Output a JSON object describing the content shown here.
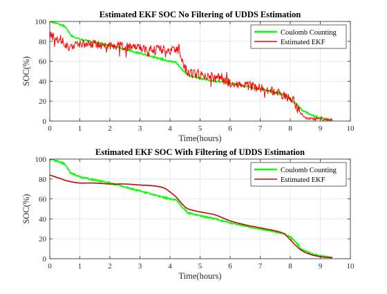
{
  "figure": {
    "background": "#ffffff"
  },
  "chart_data": [
    {
      "type": "line",
      "title": "Estimated EKF SOC No Filtering of UDDS Estimation",
      "xlabel": "Time(hours)",
      "ylabel": "SOC(%)",
      "xlim": [
        0,
        10
      ],
      "ylim": [
        0,
        100
      ],
      "xticks": [
        0,
        1,
        2,
        3,
        4,
        5,
        6,
        7,
        8,
        9,
        10
      ],
      "yticks": [
        0,
        20,
        40,
        60,
        80,
        100
      ],
      "grid": true,
      "legend_position": "top-right",
      "series": [
        {
          "name": "Coulomb Counting",
          "color": "#00ff00",
          "x": [
            0,
            0.25,
            0.5,
            0.7,
            1.0,
            1.5,
            2.0,
            2.5,
            3.0,
            3.5,
            4.0,
            4.2,
            4.4,
            4.6,
            5.0,
            5.5,
            6.0,
            6.5,
            7.0,
            7.5,
            7.8,
            8.0,
            8.2,
            8.4,
            8.7,
            9.0,
            9.4
          ],
          "y": [
            100,
            98,
            95,
            86,
            82,
            79,
            76,
            72,
            68,
            64,
            60,
            59,
            52,
            46,
            43,
            40,
            38,
            35,
            32,
            29,
            26,
            22,
            17,
            11,
            6,
            3,
            1
          ]
        },
        {
          "name": "Estimated EKF",
          "color": "#ff0000",
          "noise": 4.5,
          "x": [
            0,
            0.1,
            0.3,
            0.5,
            0.6,
            1.0,
            1.5,
            2.0,
            2.5,
            3.0,
            3.5,
            4.0,
            4.3,
            4.4,
            4.6,
            5.0,
            5.5,
            6.0,
            6.5,
            7.0,
            7.5,
            8.0,
            8.1,
            8.3,
            8.5,
            8.8,
            9.0,
            9.4
          ],
          "y": [
            86,
            85,
            82,
            78,
            74,
            77,
            77,
            76,
            75,
            73,
            72,
            71,
            71,
            60,
            48,
            46,
            43,
            38,
            36,
            33,
            30,
            22,
            20,
            10,
            3,
            2,
            2,
            1
          ]
        }
      ]
    },
    {
      "type": "line",
      "title": "Estimated EKF SOC With Filtering of UDDS Estimation",
      "xlabel": "Time(hours)",
      "ylabel": "SOC(%)",
      "xlim": [
        0,
        10
      ],
      "ylim": [
        0,
        100
      ],
      "xticks": [
        0,
        1,
        2,
        3,
        4,
        5,
        6,
        7,
        8,
        9,
        10
      ],
      "yticks": [
        0,
        20,
        40,
        60,
        80,
        100
      ],
      "grid": true,
      "legend_position": "top-right",
      "series": [
        {
          "name": "Coulomb Counting",
          "color": "#00ff00",
          "x": [
            0,
            0.25,
            0.5,
            0.7,
            1.0,
            1.5,
            2.0,
            2.5,
            3.0,
            3.5,
            4.0,
            4.2,
            4.4,
            4.6,
            5.0,
            5.5,
            6.0,
            6.5,
            7.0,
            7.5,
            7.8,
            8.0,
            8.2,
            8.4,
            8.7,
            9.0,
            9.4
          ],
          "y": [
            100,
            98,
            95,
            86,
            82,
            79,
            76,
            72,
            68,
            64,
            60,
            59,
            52,
            46,
            43,
            40,
            36,
            33,
            30,
            27,
            25,
            22,
            16,
            9,
            5,
            3,
            1
          ]
        },
        {
          "name": "Estimated EKF",
          "color": "#cc0000",
          "x": [
            0,
            0.3,
            0.6,
            1.0,
            1.5,
            2.0,
            2.5,
            3.0,
            3.5,
            3.8,
            4.0,
            4.2,
            4.4,
            4.6,
            5.0,
            5.5,
            6.0,
            6.5,
            7.0,
            7.5,
            7.8,
            8.0,
            8.3,
            8.6,
            9.0,
            9.4
          ],
          "y": [
            84,
            81,
            78,
            76,
            76,
            75,
            75,
            74,
            73,
            71,
            67,
            62,
            55,
            50,
            47,
            44,
            38,
            34,
            31,
            28,
            25,
            19,
            10,
            5,
            2,
            1
          ]
        }
      ]
    }
  ]
}
